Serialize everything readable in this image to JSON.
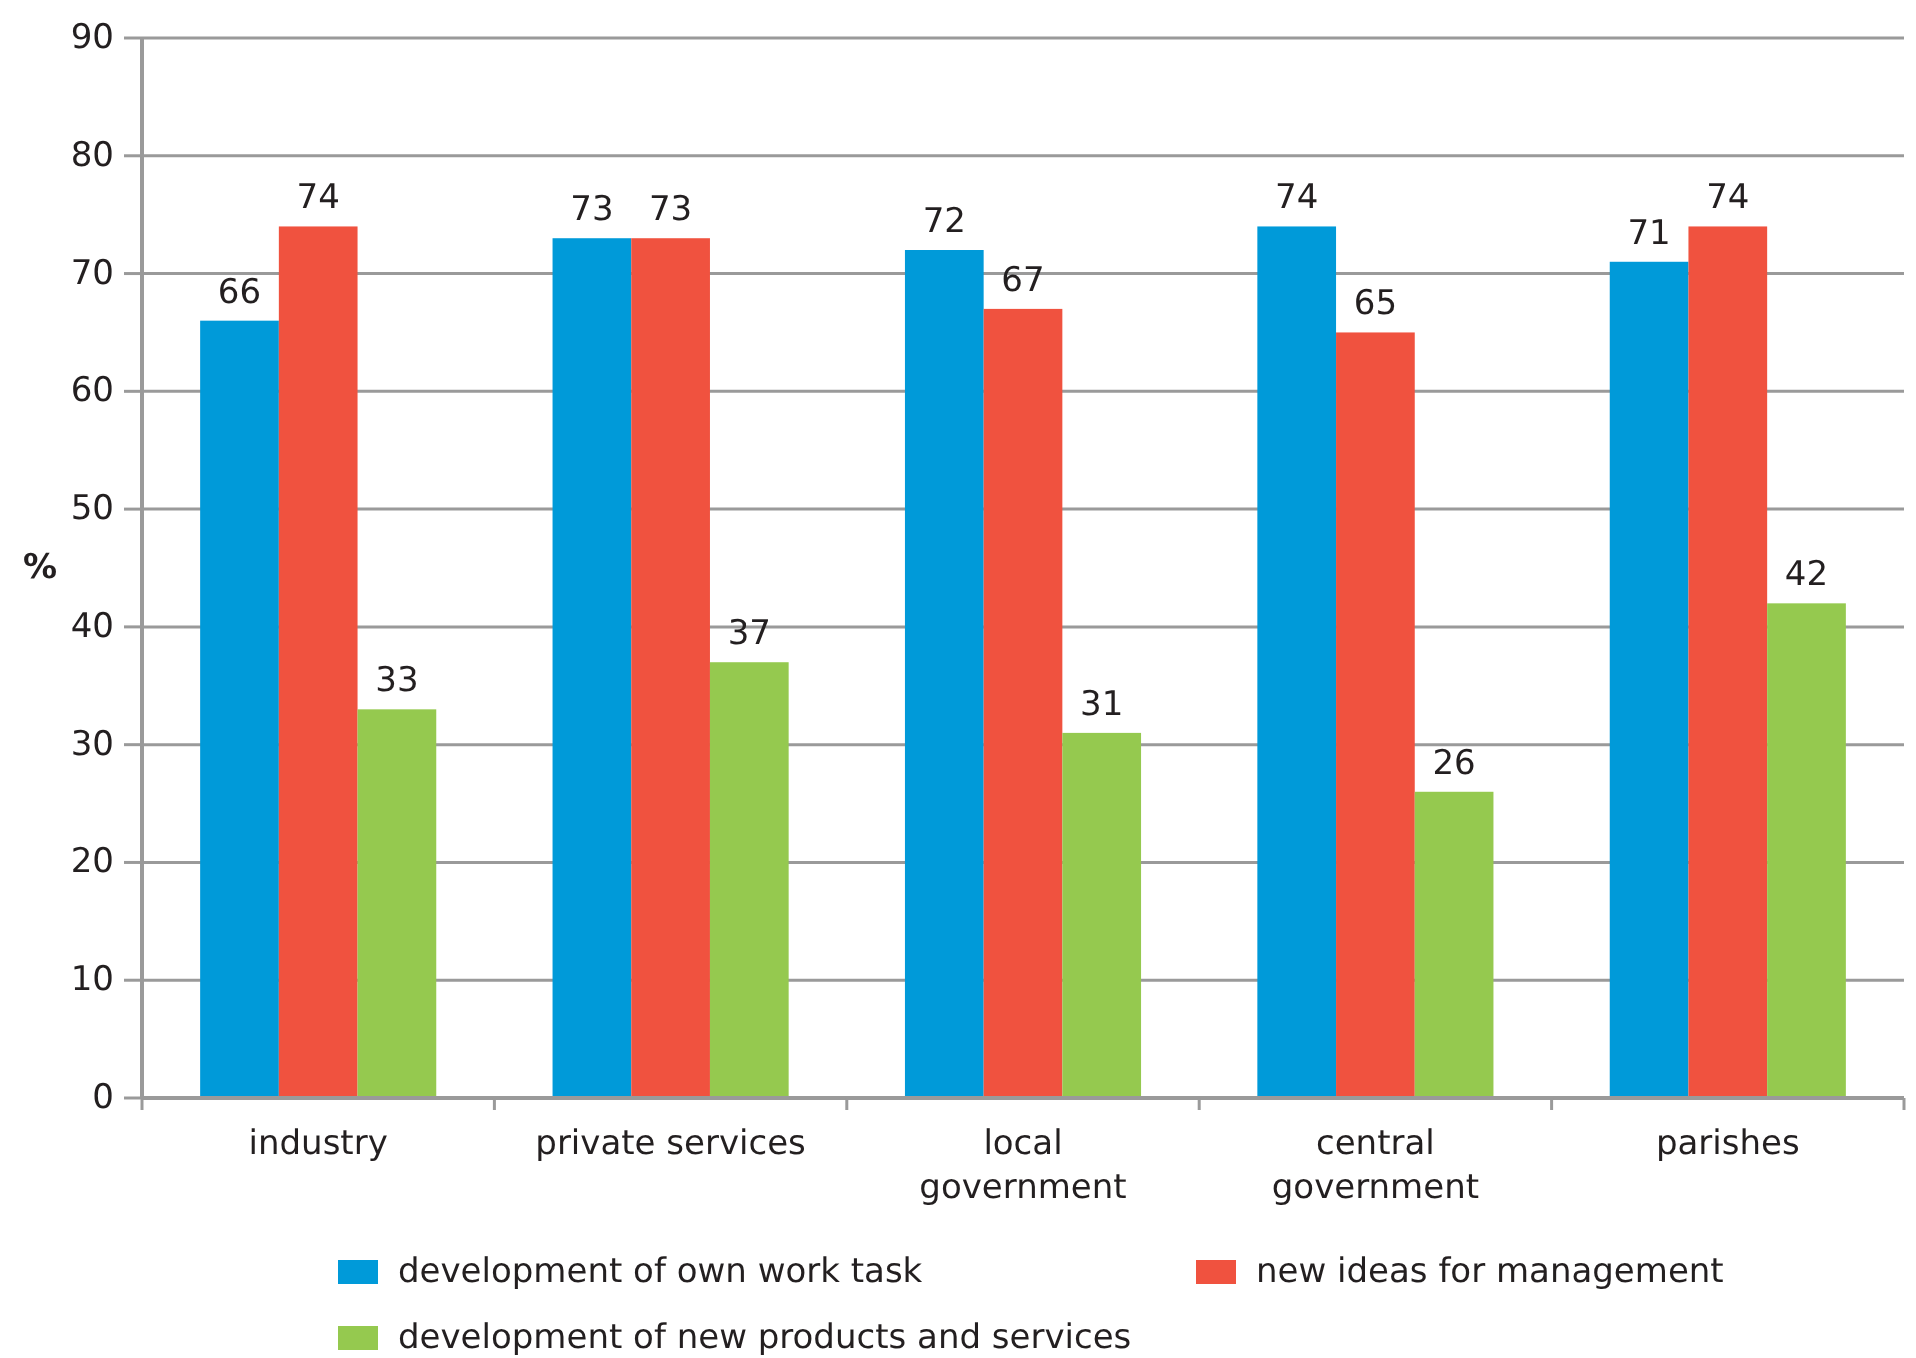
{
  "chart_data": {
    "type": "bar",
    "categories": [
      "industry",
      "private services",
      "local\ngovernment",
      "central\ngovernment",
      "parishes"
    ],
    "series": [
      {
        "name": "development of own work task",
        "color": "#009ad9",
        "values": [
          66,
          73,
          72,
          74,
          71
        ]
      },
      {
        "name": "new ideas for management",
        "color": "#f0523f",
        "values": [
          74,
          73,
          67,
          65,
          74
        ]
      },
      {
        "name": "development of new products and services",
        "color": "#95c94f",
        "values": [
          33,
          37,
          31,
          26,
          42
        ]
      }
    ],
    "ylabel": "%",
    "ylim": [
      0,
      90
    ],
    "yticks": [
      0,
      10,
      20,
      30,
      40,
      50,
      60,
      70,
      80,
      90
    ],
    "grid": "y",
    "legend": "bottom",
    "data_labels": true
  }
}
